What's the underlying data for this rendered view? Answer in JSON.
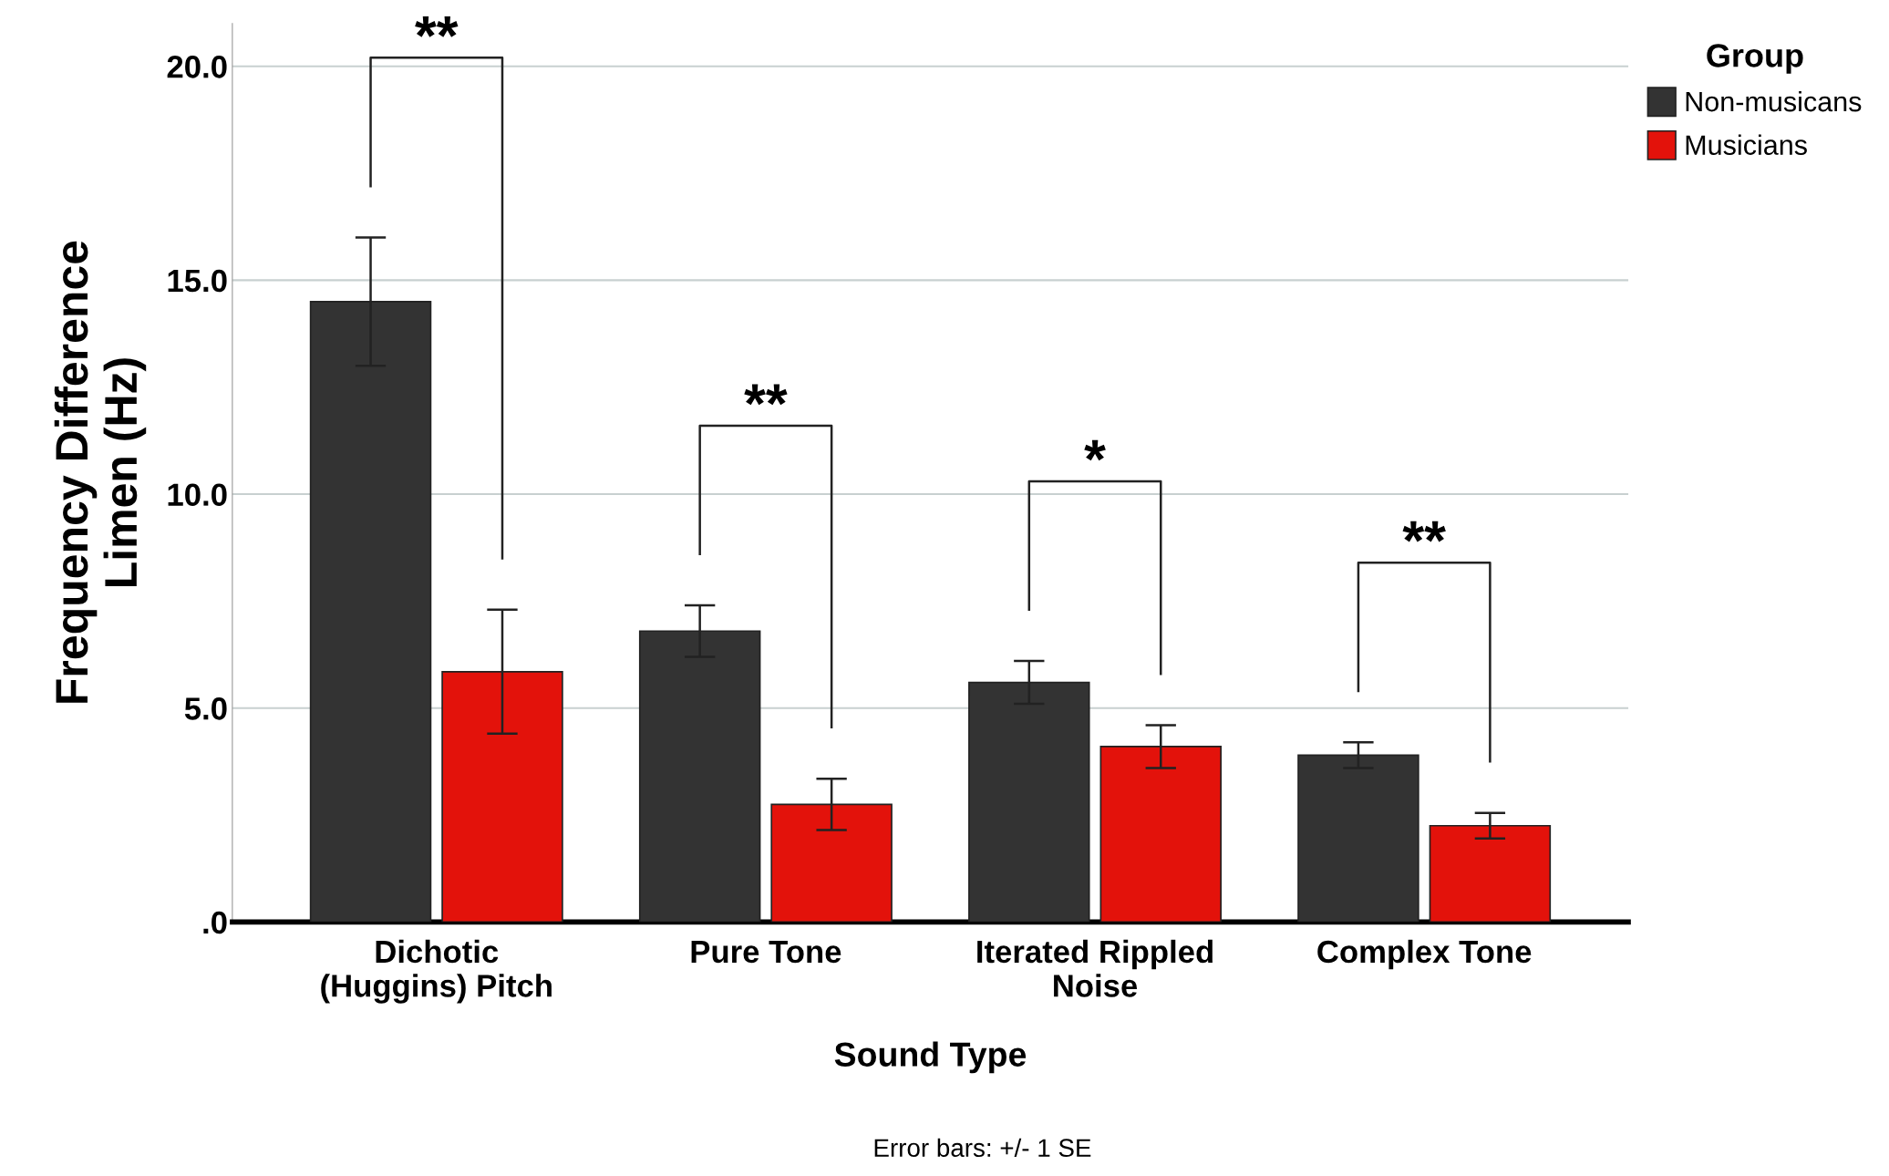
{
  "chart_data": {
    "type": "bar",
    "xlabel": "Sound Type",
    "ylabel": "Frequency Difference\nLimen (Hz)",
    "legend_title": "Group",
    "categories": [
      "Dichotic\n(Huggins) Pitch",
      "Pure Tone",
      "Iterated Rippled\nNoise",
      "Complex Tone"
    ],
    "series": [
      {
        "name": "Non-musicans",
        "color": "#333333",
        "values": [
          14.5,
          6.8,
          5.6,
          3.9
        ],
        "errors": [
          1.5,
          0.6,
          0.5,
          0.3
        ]
      },
      {
        "name": "Musicians",
        "color": "#e3120b",
        "values": [
          5.85,
          2.75,
          4.1,
          2.25
        ],
        "errors": [
          1.45,
          0.6,
          0.5,
          0.3
        ]
      }
    ],
    "ylim": [
      0,
      21
    ],
    "yticks": [
      {
        "value": 0,
        "label": ".0"
      },
      {
        "value": 5,
        "label": "5.0"
      },
      {
        "value": 10,
        "label": "10.0"
      },
      {
        "value": 15,
        "label": "15.0"
      },
      {
        "value": 20,
        "label": "20.0"
      }
    ],
    "grid": "y",
    "legend": "top right",
    "annotations": [
      "**",
      "**",
      "*",
      "**",
      "Error bars: +/- 1 SE"
    ]
  }
}
